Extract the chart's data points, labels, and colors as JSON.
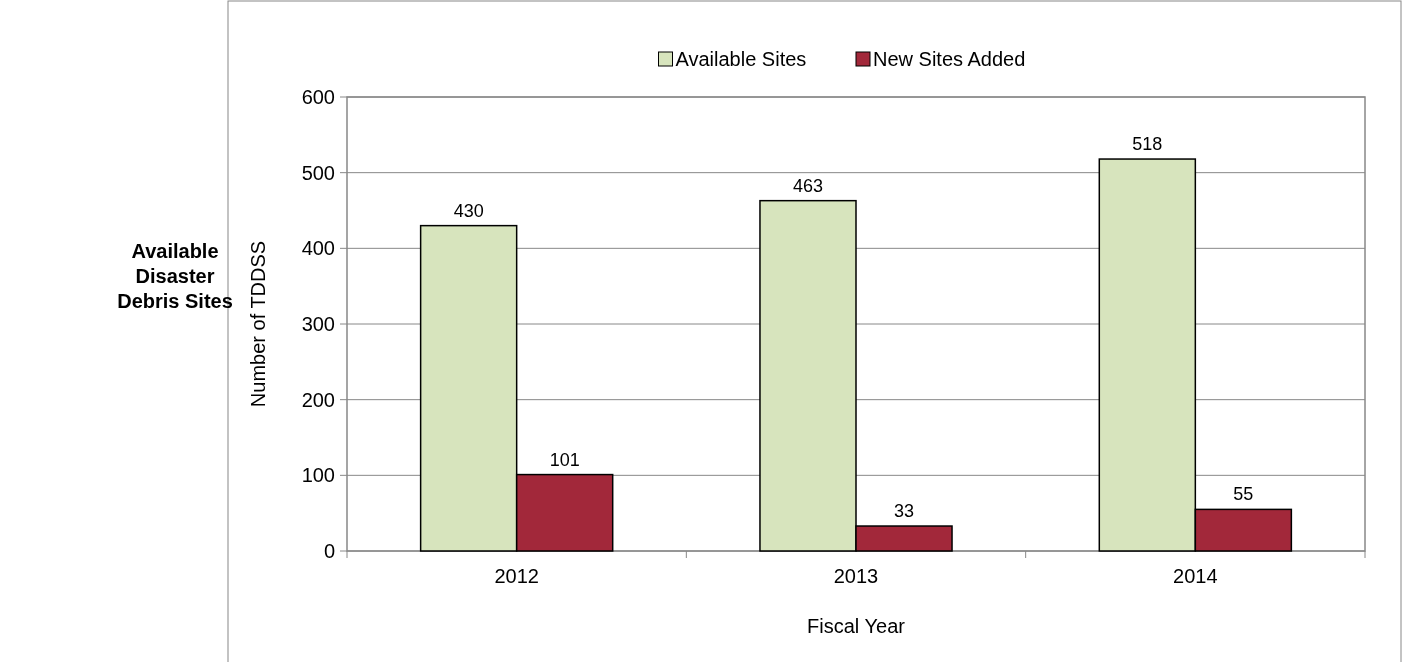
{
  "chart_data": {
    "type": "bar",
    "title": "Available Disaster Debris Sites",
    "xlabel": "Fiscal Year",
    "ylabel": "Number of TDDSS",
    "categories": [
      "2012",
      "2013",
      "2014"
    ],
    "series": [
      {
        "name": "Available Sites",
        "color": "#d7e4bd",
        "values": [
          430,
          463,
          518
        ]
      },
      {
        "name": "New Sites Added",
        "color": "#a2283a",
        "values": [
          101,
          33,
          55
        ]
      }
    ],
    "ylim": [
      0,
      600
    ],
    "yticks": [
      0,
      100,
      200,
      300,
      400,
      500,
      600
    ],
    "grid": "y",
    "legend": "top",
    "data_labels": true
  }
}
